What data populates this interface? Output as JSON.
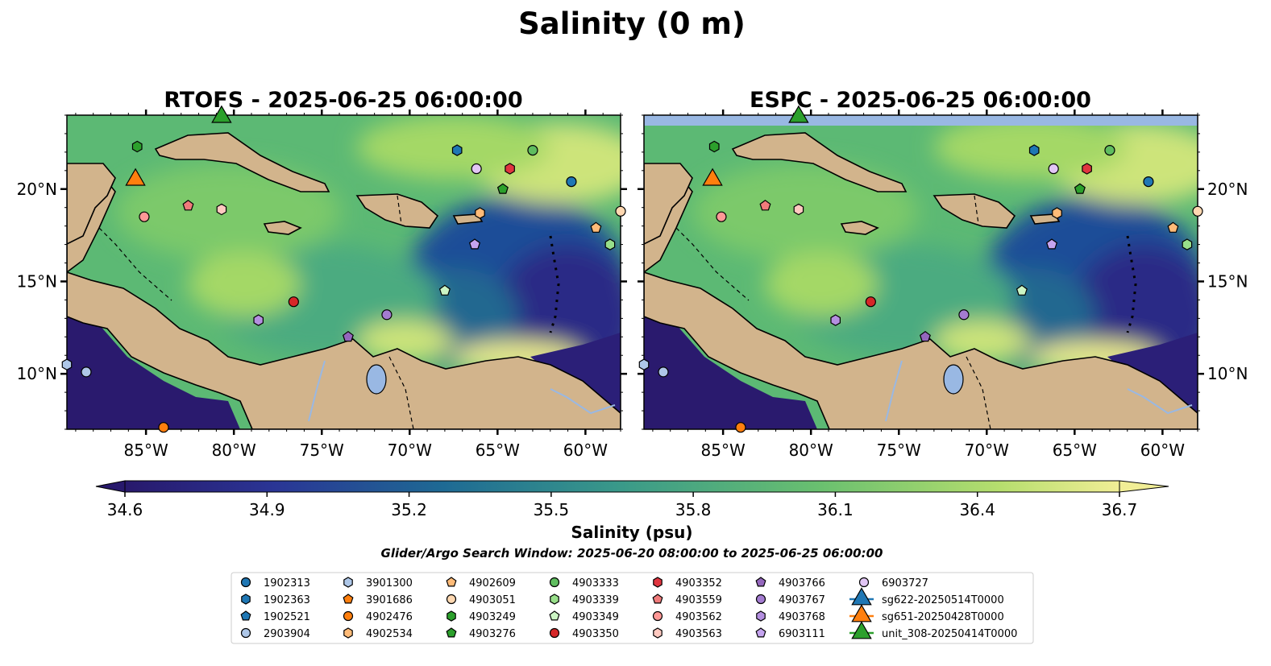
{
  "chart_data": {
    "type": "map",
    "title": "Salinity (0 m)",
    "search_window_note": "Glider/Argo Search Window: 2025-06-20 08:00:00 to 2025-06-25 06:00:00",
    "extent": {
      "lon": [
        -89.5,
        -58.0
      ],
      "lat": [
        7.0,
        24.0
      ]
    },
    "lon_ticks": [
      -85,
      -80,
      -75,
      -70,
      -65,
      -60
    ],
    "lon_tick_labels": [
      "85°W",
      "80°W",
      "75°W",
      "70°W",
      "65°W",
      "60°W"
    ],
    "lat_ticks": [
      10,
      15,
      20
    ],
    "lat_tick_labels": [
      "10°N",
      "15°N",
      "20°N"
    ],
    "panels": [
      {
        "title": "RTOFS - 2025-06-25 06:00:00",
        "model": "RTOFS",
        "lat_tick_side": "left"
      },
      {
        "title": "ESPC - 2025-06-25 06:00:00",
        "model": "ESPC",
        "lat_tick_side": "right"
      }
    ],
    "colorbar": {
      "label": "Salinity (psu)",
      "min": 34.6,
      "max": 36.7,
      "ticks": [
        "34.6",
        "34.9",
        "35.2",
        "35.5",
        "35.8",
        "36.1",
        "36.4",
        "36.7"
      ],
      "extend": "both",
      "colors": [
        "#2a1a6e",
        "#2b2584",
        "#2a3797",
        "#1f4f9b",
        "#1a6396",
        "#217590",
        "#2f868c",
        "#3d9989",
        "#4cab80",
        "#5fbd74",
        "#7cc96b",
        "#a4d866",
        "#cde47a",
        "#f1ee96"
      ]
    },
    "colors": {
      "land": "#d2b48c",
      "deep_fresh": "#2b1a6b",
      "mid": "#3e9d88",
      "salty": "#7dc96b",
      "very_salty": "#f0ea94",
      "lakes": "#99b8e3"
    },
    "markers": [
      {
        "id": "1902313",
        "shape": "circle",
        "color": "#1f77b4",
        "lon": -60.8,
        "lat": 20.4
      },
      {
        "id": "1902363",
        "shape": "hexagon",
        "color": "#1f77b4",
        "lon": -67.3,
        "lat": 22.1
      },
      {
        "id": "1902521",
        "shape": "pentagon",
        "color": "#1f77b4"
      },
      {
        "id": "2903904",
        "shape": "circle",
        "color": "#aec7e8",
        "lon": -88.4,
        "lat": 10.1
      },
      {
        "id": "3901300",
        "shape": "hexagon",
        "color": "#aec7e8",
        "lon": -89.5,
        "lat": 10.5
      },
      {
        "id": "3901686",
        "shape": "pentagon",
        "color": "#ff7f0e"
      },
      {
        "id": "4902476",
        "shape": "circle",
        "color": "#ff7f0e",
        "lon": -84.0,
        "lat": 7.1
      },
      {
        "id": "4902534",
        "shape": "hexagon",
        "color": "#ffbb78",
        "lon": -66.0,
        "lat": 18.7
      },
      {
        "id": "4902609",
        "shape": "pentagon",
        "color": "#ffbb78",
        "lon": -59.4,
        "lat": 17.9
      },
      {
        "id": "4903051",
        "shape": "circle",
        "color": "#ffd8b1",
        "lon": -58.0,
        "lat": 18.8
      },
      {
        "id": "4903249",
        "shape": "hexagon",
        "color": "#2ca02c",
        "lon": -85.5,
        "lat": 22.3
      },
      {
        "id": "4903276",
        "shape": "pentagon",
        "color": "#2ca02c",
        "lon": -64.7,
        "lat": 20.0
      },
      {
        "id": "4903333",
        "shape": "circle",
        "color": "#5fbd5f",
        "lon": -63.0,
        "lat": 22.1
      },
      {
        "id": "4903339",
        "shape": "hexagon",
        "color": "#98df8a",
        "lon": -58.6,
        "lat": 17.0
      },
      {
        "id": "4903349",
        "shape": "pentagon",
        "color": "#ccf5c4",
        "lon": -68.0,
        "lat": 14.5
      },
      {
        "id": "4903350",
        "shape": "circle",
        "color": "#d62728",
        "lon": -76.6,
        "lat": 13.9
      },
      {
        "id": "4903352",
        "shape": "hexagon",
        "color": "#e0353f",
        "lon": -64.3,
        "lat": 21.1
      },
      {
        "id": "4903559",
        "shape": "pentagon",
        "color": "#f07b7b",
        "lon": -82.6,
        "lat": 19.1
      },
      {
        "id": "4903562",
        "shape": "circle",
        "color": "#ff9896",
        "lon": -85.1,
        "lat": 18.5
      },
      {
        "id": "4903563",
        "shape": "hexagon",
        "color": "#ffc9c0",
        "lon": -80.7,
        "lat": 18.9
      },
      {
        "id": "4903766",
        "shape": "pentagon",
        "color": "#9467bd",
        "lon": -73.5,
        "lat": 12.0
      },
      {
        "id": "4903767",
        "shape": "circle",
        "color": "#a47cd1",
        "lon": -71.3,
        "lat": 13.2
      },
      {
        "id": "4903768",
        "shape": "hexagon",
        "color": "#b48fe0",
        "lon": -78.6,
        "lat": 12.9
      },
      {
        "id": "6903111",
        "shape": "pentagon",
        "color": "#c5a4ef",
        "lon": -66.3,
        "lat": 17.0
      },
      {
        "id": "6903727",
        "shape": "circle",
        "color": "#e2c6f5",
        "lon": -66.2,
        "lat": 21.1
      },
      {
        "id": "sg622-20250514T0000",
        "shape": "triangle",
        "color": "#1f77b4"
      },
      {
        "id": "sg651-20250428T0000",
        "shape": "triangle",
        "color": "#ff7f0e",
        "lon": -85.6,
        "lat": 20.5
      },
      {
        "id": "unit_308-20250414T0000",
        "shape": "triangle",
        "color": "#2ca02c",
        "lon": -80.7,
        "lat": 23.9
      }
    ]
  }
}
